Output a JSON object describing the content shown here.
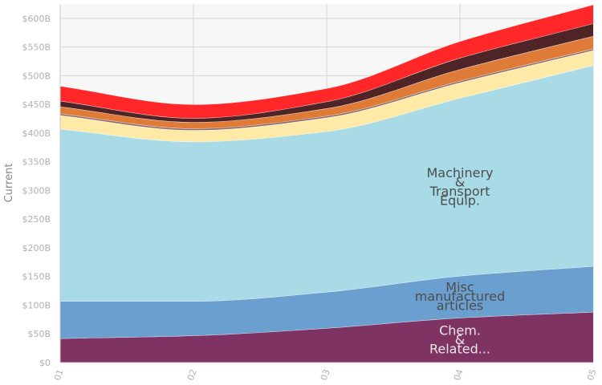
{
  "chart_data": {
    "type": "area",
    "stacked": true,
    "x": [
      "01",
      "02",
      "03",
      "04",
      "05"
    ],
    "ylabel": "Current",
    "ylim": [
      0,
      625
    ],
    "yticks": [
      0,
      50,
      100,
      150,
      200,
      250,
      300,
      350,
      400,
      450,
      500,
      550,
      600
    ],
    "ytick_labels": [
      "$0",
      "$50B",
      "$100B",
      "$150B",
      "$200B",
      "$250B",
      "$300B",
      "$350B",
      "$400B",
      "$450B",
      "$500B",
      "$550B",
      "$600B"
    ],
    "grid": true,
    "series": [
      {
        "name": "Chem. & Related...",
        "label_lines": [
          "Chem.",
          "&",
          "Related..."
        ],
        "color": "#7f3362",
        "values": [
          42,
          47,
          60,
          78,
          88
        ]
      },
      {
        "name": "Misc manufactured articles",
        "label_lines": [
          "Misc",
          "manufactured",
          "articles"
        ],
        "color": "#6b9fcf",
        "values": [
          65,
          60,
          63,
          73,
          80
        ]
      },
      {
        "name": "Machinery & Transport Equip.",
        "label_lines": [
          "Machinery",
          "&",
          "Transport",
          "Equip."
        ],
        "color": "#a8dbe6",
        "values": [
          300,
          278,
          280,
          310,
          350
        ]
      },
      {
        "name": "",
        "color": "#feeaa6",
        "values": [
          24,
          20,
          24,
          27,
          26
        ]
      },
      {
        "name": "",
        "color": "#8c6d6d",
        "values": [
          3,
          3,
          3,
          3,
          3
        ]
      },
      {
        "name": "",
        "color": "#df7b37",
        "values": [
          12,
          11,
          13,
          20,
          22
        ]
      },
      {
        "name": "",
        "color": "#4e2426",
        "values": [
          10,
          7,
          12,
          20,
          22
        ]
      },
      {
        "name": "",
        "color": "#ff2727",
        "values": [
          26,
          24,
          23,
          29,
          33
        ]
      }
    ]
  }
}
